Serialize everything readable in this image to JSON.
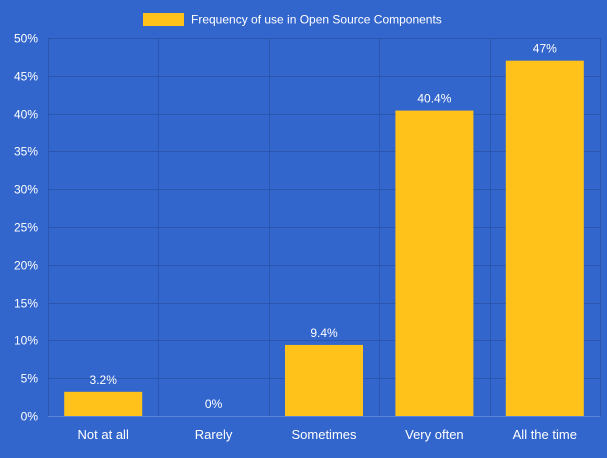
{
  "colors": {
    "background": "#3366cc",
    "bar": "#ffc21a",
    "grid": "#2a56ad",
    "axis": "#5b82d6",
    "text": "#ffffff"
  },
  "chart_data": {
    "type": "bar",
    "title": "",
    "xlabel": "",
    "ylabel": "",
    "categories": [
      "Not at all",
      "Rarely",
      "Sometimes",
      "Very often",
      "All the time"
    ],
    "series": [
      {
        "name": "Frequency of use in Open Source Components",
        "values": [
          3.2,
          0,
          9.4,
          40.4,
          47
        ],
        "labels": [
          "3.2%",
          "0%",
          "9.4%",
          "40.4%",
          "47%"
        ]
      }
    ],
    "ylim": [
      0,
      50
    ],
    "y_ticks": [
      0,
      5,
      10,
      15,
      20,
      25,
      30,
      35,
      40,
      45,
      50
    ],
    "y_tick_labels": [
      "0%",
      "5%",
      "10%",
      "15%",
      "20%",
      "25%",
      "30%",
      "35%",
      "40%",
      "45%",
      "50%"
    ],
    "grid": true,
    "legend_position": "top-center"
  }
}
